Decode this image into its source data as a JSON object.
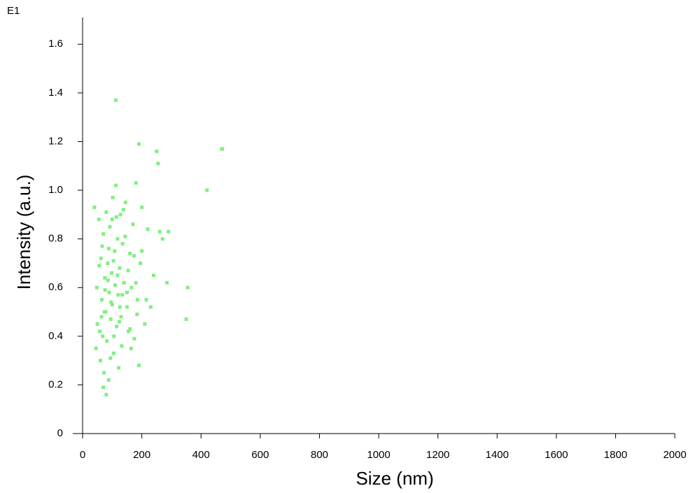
{
  "chart_data": {
    "type": "scatter",
    "title": "E1",
    "x_label": "Size (nm)",
    "y_label": "Intensity (a.u.)",
    "xlim": [
      0,
      2000
    ],
    "ylim": [
      0,
      1.71
    ],
    "xticks": [
      0,
      200,
      400,
      600,
      800,
      1000,
      1200,
      1400,
      1600,
      1800,
      2000
    ],
    "yticks": [
      0,
      0.2,
      0.4,
      0.6,
      0.8,
      {
        "value": 1,
        "label": "1.0"
      },
      1.2,
      1.4,
      1.6
    ],
    "series": [
      {
        "color": "#80f080",
        "x": [
          112,
          470,
          472,
          420,
          355,
          350,
          190,
          250,
          255,
          80,
          70,
          285,
          40,
          45,
          50,
          55,
          60,
          62,
          65,
          68,
          70,
          72,
          75,
          78,
          80,
          82,
          85,
          88,
          90,
          92,
          95,
          98,
          100,
          102,
          105,
          108,
          110,
          112,
          115,
          118,
          120,
          122,
          125,
          128,
          130,
          132,
          135,
          140,
          145,
          150,
          155,
          160,
          165,
          170,
          175,
          180,
          185,
          190,
          195,
          200,
          210,
          220,
          230,
          240,
          260,
          270,
          290,
          48,
          58,
          66,
          74,
          86,
          94,
          104,
          114,
          124,
          134,
          144,
          154,
          164,
          174,
          184,
          96,
          100,
          106,
          88,
          76,
          64,
          56,
          118,
          126,
          138,
          150,
          160,
          180,
          200,
          215
        ],
        "values": [
          1.37,
          1.17,
          1.17,
          1.0,
          0.6,
          0.47,
          1.19,
          1.16,
          1.11,
          0.16,
          0.19,
          0.62,
          0.93,
          0.35,
          0.45,
          0.88,
          0.3,
          0.72,
          0.55,
          0.4,
          0.82,
          0.25,
          0.64,
          0.5,
          0.91,
          0.38,
          0.7,
          0.22,
          0.58,
          0.85,
          0.47,
          0.66,
          0.53,
          0.97,
          0.33,
          0.75,
          0.61,
          1.02,
          0.44,
          0.8,
          0.57,
          0.27,
          0.68,
          0.9,
          0.48,
          0.36,
          0.78,
          0.62,
          0.95,
          0.52,
          0.42,
          0.74,
          0.6,
          0.86,
          0.39,
          1.03,
          0.55,
          0.28,
          0.7,
          0.93,
          0.45,
          0.84,
          0.52,
          0.65,
          0.83,
          0.8,
          0.83,
          0.6,
          0.42,
          0.77,
          0.5,
          0.63,
          0.31,
          0.71,
          0.89,
          0.46,
          0.57,
          0.81,
          0.67,
          0.35,
          0.73,
          0.49,
          0.54,
          0.88,
          0.4,
          0.76,
          0.59,
          0.48,
          0.69,
          0.65,
          0.52,
          0.92,
          0.58,
          0.43,
          0.62,
          0.75,
          0.55
        ]
      }
    ]
  }
}
